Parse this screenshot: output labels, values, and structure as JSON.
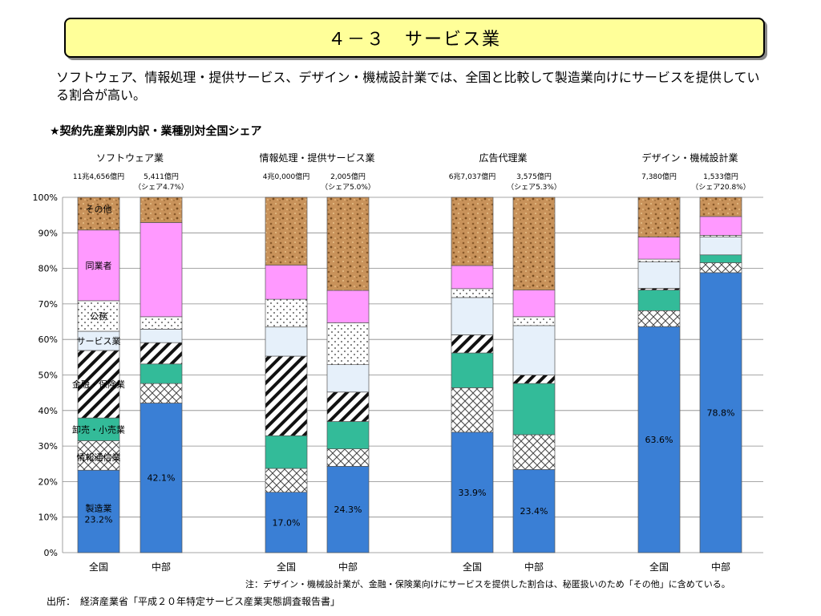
{
  "title": "４－３　サービス業",
  "lead_text": "ソフトウェア、情報処理・提供サービス、デザイン・機械設計業では、全国と比較して製造業向けにサービスを提供している割合が高い。",
  "subtitle": "★契約先産業別内訳・業種別対全国シェア",
  "note": "注：デザイン・機械設計業が、金融・保険業向けにサービスを提供した割合は、秘匿扱いのため「その他」に含めている。",
  "source": "出所：　経済産業省「平成２０年特定サービス産業実態調査報告書」",
  "chart_data": {
    "type": "bar",
    "stacked": true,
    "ylim": [
      0,
      100
    ],
    "yticks": [
      "0%",
      "10%",
      "20%",
      "30%",
      "40%",
      "50%",
      "60%",
      "70%",
      "80%",
      "90%",
      "100%"
    ],
    "segments": [
      "製造業",
      "情報通信業",
      "卸売・小売業",
      "金融・保険業",
      "サービス業",
      "公務",
      "同業者",
      "その他"
    ],
    "segment_colors": [
      "#3a7fd5",
      "pattern-crosshatch",
      "#33bb99",
      "pattern-diagonal",
      "#e6f0fa",
      "pattern-dots",
      "#ff99ff",
      "pattern-cork"
    ],
    "segment_labels": [
      "製造業",
      "情報通信業",
      "卸売・小売業",
      "金融・保険業",
      "サービス業",
      "公務",
      "同業者",
      "その他"
    ],
    "groups": [
      {
        "name": "ソフトウェア業",
        "bars": [
          {
            "category": "全国",
            "total": "11兆4,656億円",
            "share": "",
            "values": [
              23.2,
              8.3,
              6.4,
              19.0,
              5.4,
              8.6,
              19.9,
              9.2
            ],
            "value_label": "23.2%"
          },
          {
            "category": "中部",
            "total": "5,411億円",
            "share": "（シェア4.7%）",
            "values": [
              42.1,
              5.5,
              5.5,
              6.0,
              3.8,
              3.5,
              26.5,
              7.1
            ],
            "value_label": "42.1%"
          }
        ]
      },
      {
        "name": "情報処理・提供サービス業",
        "bars": [
          {
            "category": "全国",
            "total": "4兆0,000億円",
            "share": "",
            "values": [
              17.0,
              6.7,
              9.2,
              22.4,
              8.2,
              7.8,
              9.6,
              19.1
            ],
            "value_label": "17.0%"
          },
          {
            "category": "中部",
            "total": "2,005億円",
            "share": "（シェア5.0%）",
            "values": [
              24.3,
              4.9,
              7.7,
              8.3,
              7.7,
              11.8,
              9.1,
              26.2
            ],
            "value_label": "24.3%"
          }
        ]
      },
      {
        "name": "広告代理業",
        "bars": [
          {
            "category": "全国",
            "total": "6兆7,037億円",
            "share": "",
            "values": [
              33.9,
              12.5,
              9.8,
              5.1,
              10.5,
              2.5,
              6.5,
              19.2
            ],
            "value_label": "33.9%"
          },
          {
            "category": "中部",
            "total": "3,575億円",
            "share": "（シェア5.3%）",
            "values": [
              23.4,
              9.8,
              14.4,
              2.4,
              13.9,
              2.5,
              7.5,
              26.1
            ],
            "value_label": "23.4%"
          }
        ]
      },
      {
        "name": "デザイン・機械設計業",
        "bars": [
          {
            "category": "全国",
            "total": "7,380億円",
            "share": "",
            "values": [
              63.6,
              4.5,
              5.8,
              0.5,
              7.4,
              0.8,
              6.2,
              11.2
            ],
            "value_label": "63.6%"
          },
          {
            "category": "中部",
            "total": "1,533億円",
            "share": "（シェア20.8%）",
            "values": [
              78.8,
              2.8,
              2.2,
              0.0,
              5.0,
              0.5,
              5.3,
              5.4
            ],
            "value_label": "78.8%"
          }
        ]
      }
    ]
  }
}
